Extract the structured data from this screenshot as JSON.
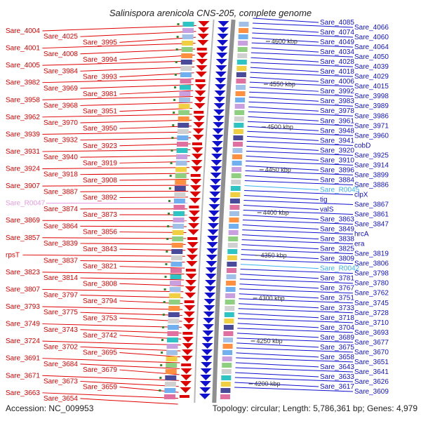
{
  "title": "Salinispora arenicola CNS-205, complete genome",
  "footer": {
    "accession": "Accession: NC_009953",
    "topology": "Topology: circular; Length: 5,786,361 bp; Genes: 4,979"
  },
  "colors": {
    "left": "#e00000",
    "right": "#1010d0",
    "rna_left": "#e89ae0",
    "rna_right": "#3ab0f0"
  },
  "kbp_ticks": [
    "4600 kbp",
    "4550 kbp",
    "4500 kbp",
    "4450 kbp",
    "4400 kbp",
    "4350 kbp",
    "4300 kbp",
    "4250 kbp",
    "4200 kbp"
  ],
  "left_labels": [
    "Sare_4004",
    "Sare_4025",
    "Sare_3995",
    "Sare_4001",
    "Sare_4008",
    "Sare_3994",
    "Sare_4005",
    "Sare_3984",
    "Sare_3993",
    "Sare_3982",
    "Sare_3969",
    "Sare_3981",
    "Sare_3958",
    "Sare_3968",
    "Sare_3951",
    "Sare_3962",
    "Sare_3970",
    "Sare_3950",
    "Sare_3939",
    "Sare_3932",
    "Sare_3923",
    "Sare_3931",
    "Sare_3940",
    "Sare_3919",
    "Sare_3924",
    "Sare_3918",
    "Sare_3908",
    "Sare_3907",
    "Sare_3887",
    "Sare_3892",
    "Sare_R0047",
    "Sare_3874",
    "Sare_3873",
    "Sare_3869",
    "Sare_3864",
    "Sare_3856",
    "Sare_3857",
    "Sare_3839",
    "Sare_3843",
    "rpsT",
    "Sare_3837",
    "Sare_3821",
    "Sare_3823",
    "Sare_3814",
    "Sare_3808",
    "Sare_3807",
    "Sare_3797",
    "Sare_3794",
    "Sare_3793",
    "Sare_3775",
    "Sare_3753",
    "Sare_3749",
    "Sare_3743",
    "Sare_3742",
    "Sare_3724",
    "Sare_3702",
    "Sare_3695",
    "Sare_3691",
    "Sare_3684",
    "Sare_3679",
    "Sare_3671",
    "Sare_3673",
    "Sare_3659",
    "Sare_3663",
    "Sare_3654"
  ],
  "right_labels": [
    "Sare_4085",
    "Sare_4066",
    "Sare_4074",
    "Sare_4060",
    "Sare_4049",
    "Sare_4064",
    "Sare_4034",
    "Sare_4050",
    "Sare_4028",
    "Sare_4039",
    "Sare_4018",
    "Sare_4029",
    "Sare_4006",
    "Sare_4015",
    "Sare_3992",
    "Sare_3998",
    "Sare_3983",
    "Sare_3989",
    "Sare_3978",
    "Sare_3986",
    "Sare_3961",
    "Sare_3971",
    "Sare_3948",
    "Sare_3960",
    "Sare_3941",
    "cobD",
    "Sare_3920",
    "Sare_3925",
    "Sare_3910",
    "Sare_3914",
    "Sare_3896",
    "Sare_3899",
    "Sare_3884",
    "Sare_3886",
    "Sare_R0045",
    "clpX",
    "tig",
    "Sare_3867",
    "valS",
    "Sare_3861",
    "Sare_3863",
    "Sare_3847",
    "Sare_3849",
    "hrcA",
    "Sare_3838",
    "era",
    "Sare_3825",
    "Sare_3819",
    "Sare_3809",
    "Sare_3806",
    "Sare_R0042",
    "Sare_3798",
    "Sare_3781",
    "Sare_3780",
    "Sare_3767",
    "Sare_3762",
    "Sare_3751",
    "Sare_3745",
    "Sare_3733",
    "Sare_3728",
    "Sare_3718",
    "Sare_3710",
    "Sare_3704",
    "Sare_3693",
    "Sare_3689",
    "Sare_3677",
    "Sare_3675",
    "Sare_3670",
    "Sare_3658",
    "Sare_3651",
    "Sare_3643",
    "Sare_3641",
    "Sare_3633",
    "Sare_3626",
    "Sare_3617",
    "Sare_3609"
  ]
}
